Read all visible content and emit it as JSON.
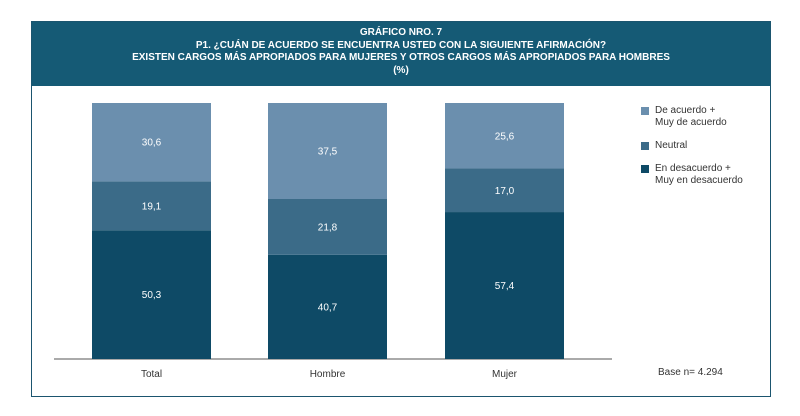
{
  "header": {
    "line1": "GRÁFICO NRO. 7",
    "line2": "P1. ¿CUÁN DE ACUERDO SE ENCUENTRA USTED CON LA SIGUIENTE AFIRMACIÓN?",
    "line3": "EXISTEN CARGOS MÁS APROPIADOS PARA MUJERES Y OTROS CARGOS MÁS APROPIADOS PARA HOMBRES",
    "line4": "(%)"
  },
  "colors": {
    "header_bg": "#155a75",
    "de_acuerdo": "#6b8fae",
    "neutral": "#3b6b88",
    "desacuerdo": "#0e4a66"
  },
  "legend": [
    {
      "label": "De acuerdo +\nMuy de acuerdo",
      "color": "#6b8fae"
    },
    {
      "label": "Neutral",
      "color": "#3b6b88"
    },
    {
      "label": "En desacuerdo +\nMuy en desacuerdo",
      "color": "#0e4a66"
    }
  ],
  "base_note": "Base n= 4.294",
  "chart_data": {
    "type": "bar",
    "stacked": true,
    "categories": [
      "Total",
      "Hombre",
      "Mujer"
    ],
    "series": [
      {
        "name": "En desacuerdo + Muy en desacuerdo",
        "values": [
          50.3,
          40.7,
          57.4
        ],
        "labels": [
          "50,3",
          "40,7",
          "57,4"
        ],
        "color": "#0e4a66"
      },
      {
        "name": "Neutral",
        "values": [
          19.1,
          21.8,
          17.0
        ],
        "labels": [
          "19,1",
          "21,8",
          "17,0"
        ],
        "color": "#3b6b88"
      },
      {
        "name": "De acuerdo + Muy de acuerdo",
        "values": [
          30.6,
          37.5,
          25.6
        ],
        "labels": [
          "30,6",
          "37,5",
          "25,6"
        ],
        "color": "#6b8fae"
      }
    ],
    "ylim": [
      0,
      100
    ],
    "grid": false,
    "legend_position": "right"
  }
}
